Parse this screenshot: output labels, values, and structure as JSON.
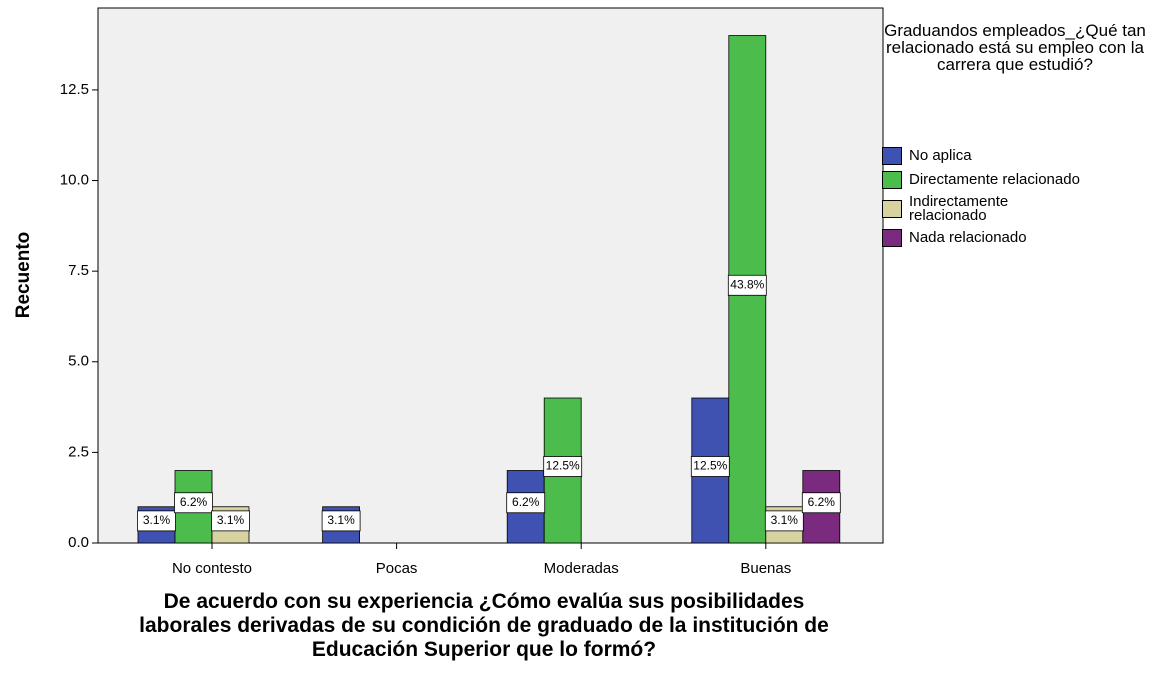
{
  "chart_data": {
    "type": "bar",
    "x_label": "De acuerdo con su experiencia ¿Cómo evalúa sus posibilidades laborales derivadas de su condición de graduado de la institución de Educación Superior que lo formó?",
    "y_label": "Recuento",
    "legend_title": "Graduandos empleados_¿Qué tan relacionado está su empleo con la carrera que estudió?",
    "legend_position": "right",
    "categories": [
      "No contesto",
      "Pocas",
      "Moderadas",
      "Buenas"
    ],
    "series": [
      {
        "name": "No aplica",
        "color": "#3f51b1",
        "values": [
          1,
          1,
          2,
          4
        ],
        "value_labels": [
          "3.1%",
          "3.1%",
          "6.2%",
          "12.5%"
        ]
      },
      {
        "name": "Directamente relacionado",
        "color": "#4cbd4c",
        "values": [
          2,
          null,
          4,
          14
        ],
        "value_labels": [
          "6.2%",
          null,
          "12.5%",
          "43.8%"
        ]
      },
      {
        "name": "Indirectamente relacionado",
        "color": "#d6d3a0",
        "values": [
          1,
          null,
          null,
          1
        ],
        "value_labels": [
          "3.1%",
          null,
          null,
          "3.1%"
        ]
      },
      {
        "name": "Nada relacionado",
        "color": "#7a2a7f",
        "values": [
          null,
          null,
          null,
          2
        ],
        "value_labels": [
          null,
          null,
          null,
          "6.2%"
        ]
      }
    ],
    "ylim": [
      0,
      14.76
    ],
    "yticks": [
      {
        "value": 0,
        "label": "0.0"
      },
      {
        "value": 2.5,
        "label": "2.5"
      },
      {
        "value": 5,
        "label": "5.0"
      },
      {
        "value": 7.5,
        "label": "7.5"
      },
      {
        "value": 10,
        "label": "10.0"
      },
      {
        "value": 12.5,
        "label": "12.5"
      }
    ],
    "grid": false
  }
}
